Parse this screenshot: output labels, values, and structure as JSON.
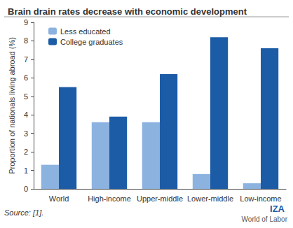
{
  "chart_data": {
    "type": "bar",
    "title": "Brain drain rates decrease with economic development",
    "y_label": "Proportion of nationals living abroad (%)",
    "categories": [
      "World",
      "High-income",
      "Upper-middle",
      "Lower-middle",
      "Low-income"
    ],
    "series": [
      {
        "name": "Less educated",
        "color": "#8cb2e0",
        "values": [
          1.3,
          3.6,
          3.6,
          0.8,
          0.3
        ]
      },
      {
        "name": "College graduates",
        "color": "#1c5ca6",
        "values": [
          5.5,
          3.9,
          6.2,
          8.2,
          7.6
        ]
      }
    ],
    "ylim": [
      0,
      9
    ],
    "yticks": [
      0,
      1,
      2,
      3,
      4,
      5,
      6,
      7,
      8,
      9
    ],
    "grid": false,
    "legend": "upper left",
    "annotations": [
      "Source: [1].",
      "IZA",
      "World of Labor"
    ]
  }
}
